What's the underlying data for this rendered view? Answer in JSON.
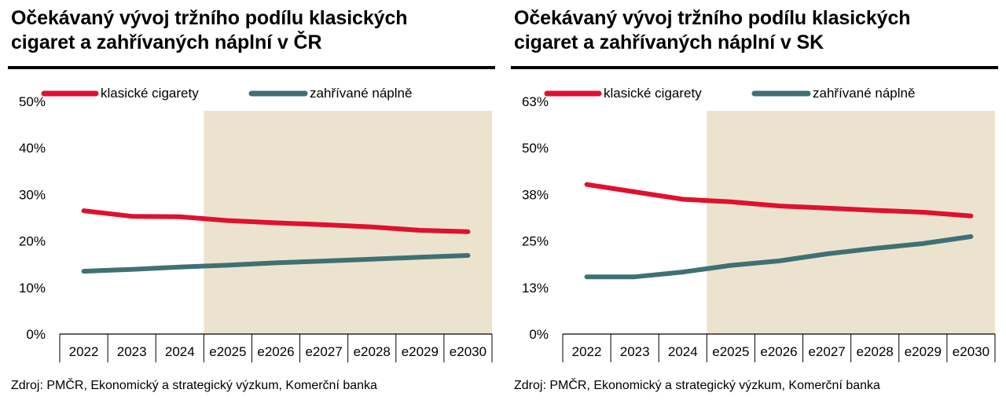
{
  "colors": {
    "klasicke": "#e0102f",
    "zahrivane": "#3f7173",
    "forecast_bg": "#ece3cf",
    "axis": "#000000"
  },
  "chart_data": [
    {
      "type": "line",
      "title": "Očekávaný vývoj tržního podílu klasických\ncigaret a zahřívaných náplní v ČR",
      "source": "Zdroj: PMČR, Ekonomický a strategický výzkum, Komerční banka",
      "categories": [
        "2022",
        "2023",
        "2024",
        "e2025",
        "e2026",
        "e2027",
        "e2028",
        "e2029",
        "e2030"
      ],
      "forecast_start": "e2025",
      "ylim": [
        0,
        50
      ],
      "ytick_values": [
        0,
        10,
        20,
        30,
        40,
        50
      ],
      "ytick_labels": [
        "0%",
        "10%",
        "20%",
        "30%",
        "40%",
        "50%"
      ],
      "grid": false,
      "legend_position": "top",
      "series": [
        {
          "name": "klasické cigarety",
          "color_key": "klasicke",
          "values": [
            26.5,
            25.3,
            25.2,
            24.4,
            23.9,
            23.5,
            23.0,
            22.3,
            22.0
          ]
        },
        {
          "name": "zahřívané náplně",
          "color_key": "zahrivane",
          "values": [
            13.5,
            13.9,
            14.4,
            14.8,
            15.3,
            15.7,
            16.1,
            16.5,
            16.9
          ]
        }
      ]
    },
    {
      "type": "line",
      "title": "Očekávaný vývoj tržního podílu klasických\ncigaret a zahřívaných náplní v SK",
      "source": "Zdroj: PMČR, Ekonomický a strategický výzkum, Komerční banka",
      "categories": [
        "2022",
        "2023",
        "2024",
        "e2025",
        "e2026",
        "e2027",
        "e2028",
        "e2029",
        "e2030"
      ],
      "forecast_start": "e2025",
      "ylim": [
        0,
        63
      ],
      "ytick_values": [
        0,
        12.6,
        25.2,
        37.8,
        50.4,
        63
      ],
      "ytick_labels": [
        "0%",
        "13%",
        "25%",
        "38%",
        "50%",
        "63%"
      ],
      "grid": false,
      "legend_position": "top",
      "series": [
        {
          "name": "klasické cigarety",
          "color_key": "klasicke",
          "values": [
            40.5,
            38.5,
            36.5,
            35.8,
            34.7,
            34.1,
            33.5,
            33.0,
            32.0
          ]
        },
        {
          "name": "zahřívané náplně",
          "color_key": "zahrivane",
          "values": [
            15.5,
            15.5,
            16.8,
            18.6,
            19.8,
            21.7,
            23.2,
            24.5,
            26.4
          ]
        }
      ]
    }
  ]
}
